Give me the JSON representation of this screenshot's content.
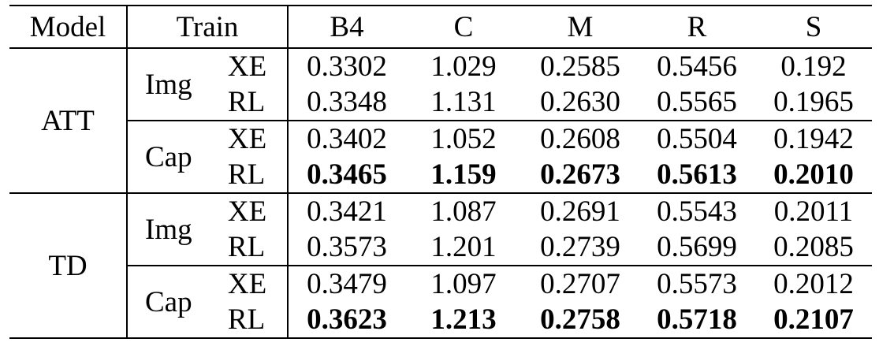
{
  "header": {
    "model": "Model",
    "train": "Train",
    "metrics": [
      "B4",
      "C",
      "M",
      "R",
      "S"
    ]
  },
  "groups": [
    {
      "model": "ATT",
      "subgroups": [
        {
          "source": "Img",
          "rows": [
            {
              "mode": "XE",
              "values": [
                "0.3302",
                "1.029",
                "0.2585",
                "0.5456",
                "0.192"
              ],
              "bold": false
            },
            {
              "mode": "RL",
              "values": [
                "0.3348",
                "1.131",
                "0.2630",
                "0.5565",
                "0.1965"
              ],
              "bold": false
            }
          ]
        },
        {
          "source": "Cap",
          "rows": [
            {
              "mode": "XE",
              "values": [
                "0.3402",
                "1.052",
                "0.2608",
                "0.5504",
                "0.1942"
              ],
              "bold": false
            },
            {
              "mode": "RL",
              "values": [
                "0.3465",
                "1.159",
                "0.2673",
                "0.5613",
                "0.2010"
              ],
              "bold": true
            }
          ]
        }
      ]
    },
    {
      "model": "TD",
      "subgroups": [
        {
          "source": "Img",
          "rows": [
            {
              "mode": "XE",
              "values": [
                "0.3421",
                "1.087",
                "0.2691",
                "0.5543",
                "0.2011"
              ],
              "bold": false
            },
            {
              "mode": "RL",
              "values": [
                "0.3573",
                "1.201",
                "0.2739",
                "0.5699",
                "0.2085"
              ],
              "bold": false
            }
          ]
        },
        {
          "source": "Cap",
          "rows": [
            {
              "mode": "XE",
              "values": [
                "0.3479",
                "1.097",
                "0.2707",
                "0.5573",
                "0.2012"
              ],
              "bold": false
            },
            {
              "mode": "RL",
              "values": [
                "0.3623",
                "1.213",
                "0.2758",
                "0.5718",
                "0.2107"
              ],
              "bold": true
            }
          ]
        }
      ]
    }
  ]
}
